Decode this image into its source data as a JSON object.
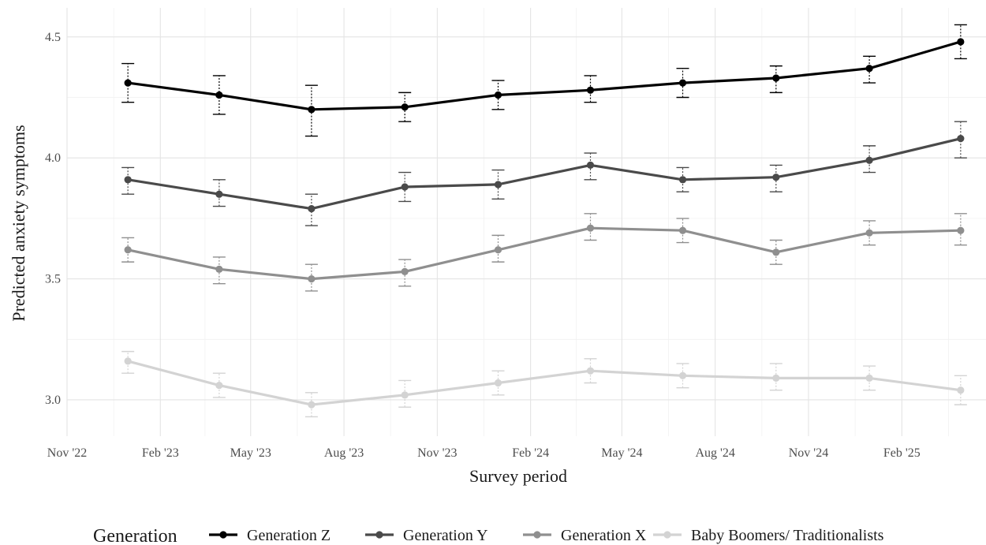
{
  "chart_data": {
    "type": "line",
    "title": "",
    "xlabel": "Survey period",
    "ylabel": "Predicted anxiety symptoms",
    "x_ticks": [
      "Nov '22",
      "Feb '23",
      "May '23",
      "Aug '23",
      "Nov '23",
      "Feb '24",
      "May '24",
      "Aug '24",
      "Nov '24",
      "Feb '25"
    ],
    "y_ticks": [
      "3.0",
      "3.5",
      "4.0",
      "4.5"
    ],
    "ylim": [
      2.85,
      4.62
    ],
    "xlim": [
      "2022-11-01",
      "2025-04-25"
    ],
    "x": [
      "2022-12-31",
      "2023-03-31",
      "2023-06-30",
      "2023-09-30",
      "2023-12-31",
      "2024-03-31",
      "2024-06-30",
      "2024-09-30",
      "2024-12-31",
      "2025-03-31"
    ],
    "grid": true,
    "legend_title": "Generation",
    "legend_position": "bottom",
    "series": [
      {
        "name": "Generation Z",
        "color": "#000000",
        "values": [
          4.31,
          4.26,
          4.2,
          4.21,
          4.26,
          4.28,
          4.31,
          4.33,
          4.37,
          4.48
        ],
        "lower": [
          4.23,
          4.18,
          4.09,
          4.15,
          4.2,
          4.23,
          4.25,
          4.27,
          4.31,
          4.41
        ],
        "upper": [
          4.39,
          4.34,
          4.3,
          4.27,
          4.32,
          4.34,
          4.37,
          4.38,
          4.42,
          4.55
        ]
      },
      {
        "name": "Generation Y",
        "color": "#4a4a4a",
        "values": [
          3.91,
          3.85,
          3.79,
          3.88,
          3.89,
          3.97,
          3.91,
          3.92,
          3.99,
          4.08
        ],
        "lower": [
          3.85,
          3.8,
          3.72,
          3.82,
          3.83,
          3.91,
          3.86,
          3.86,
          3.94,
          4.0
        ],
        "upper": [
          3.96,
          3.91,
          3.85,
          3.94,
          3.95,
          4.02,
          3.96,
          3.97,
          4.05,
          4.15
        ]
      },
      {
        "name": "Generation X",
        "color": "#8f8f8f",
        "values": [
          3.62,
          3.54,
          3.5,
          3.53,
          3.62,
          3.71,
          3.7,
          3.61,
          3.69,
          3.7
        ],
        "lower": [
          3.57,
          3.48,
          3.45,
          3.47,
          3.57,
          3.66,
          3.65,
          3.56,
          3.64,
          3.64
        ],
        "upper": [
          3.67,
          3.59,
          3.56,
          3.58,
          3.68,
          3.77,
          3.75,
          3.66,
          3.74,
          3.77
        ]
      },
      {
        "name": "Baby Boomers/ Traditionalists",
        "color": "#d3d3d3",
        "values": [
          3.16,
          3.06,
          2.98,
          3.02,
          3.07,
          3.12,
          3.1,
          3.09,
          3.09,
          3.04
        ],
        "lower": [
          3.11,
          3.01,
          2.93,
          2.97,
          3.02,
          3.07,
          3.05,
          3.04,
          3.04,
          2.98
        ],
        "upper": [
          3.2,
          3.11,
          3.03,
          3.08,
          3.12,
          3.17,
          3.15,
          3.15,
          3.14,
          3.1
        ]
      }
    ]
  }
}
